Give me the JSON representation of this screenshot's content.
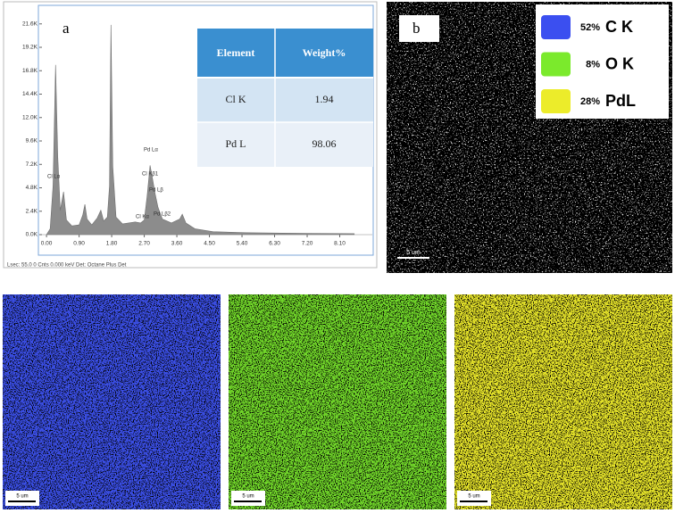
{
  "chart_data": {
    "type": "area",
    "color": "#8c8c8c",
    "x": [
      0,
      0.1,
      0.18,
      0.25,
      0.31,
      0.38,
      0.47,
      0.55,
      0.7,
      0.9,
      1.0,
      1.06,
      1.12,
      1.25,
      1.4,
      1.5,
      1.58,
      1.68,
      1.74,
      1.78,
      1.83,
      1.92,
      2.1,
      2.45,
      2.6,
      2.7,
      2.78,
      2.86,
      2.93,
      3.0,
      3.08,
      3.2,
      3.45,
      3.68,
      3.75,
      3.85,
      4.1,
      4.6,
      5.5,
      6.5,
      7.5,
      8.5
    ],
    "values": [
      0,
      600,
      5000,
      17400,
      8000,
      2500,
      4400,
      1500,
      900,
      1000,
      2000,
      3100,
      1600,
      1000,
      1700,
      2500,
      1400,
      1800,
      5000,
      21500,
      7000,
      1800,
      1100,
      1300,
      1200,
      1500,
      4000,
      7100,
      5700,
      4200,
      2800,
      1600,
      1200,
      1600,
      2100,
      1200,
      600,
      300,
      200,
      150,
      120,
      100
    ],
    "xlim": [
      -0.2,
      9.0
    ],
    "ylim": [
      0,
      23500
    ],
    "xticks": [
      {
        "value": 0,
        "label": "0.00"
      },
      {
        "value": 0.9,
        "label": "0.90"
      },
      {
        "value": 1.8,
        "label": "1.80"
      },
      {
        "value": 2.7,
        "label": "2.70"
      },
      {
        "value": 3.6,
        "label": "3.60"
      },
      {
        "value": 4.5,
        "label": "4.50"
      },
      {
        "value": 5.4,
        "label": "5.40"
      },
      {
        "value": 6.3,
        "label": "6.30"
      },
      {
        "value": 7.2,
        "label": "7.20"
      },
      {
        "value": 8.1,
        "label": "8.10"
      }
    ],
    "yticks": [
      {
        "value": 0,
        "label": "0.0K"
      },
      {
        "value": 2400,
        "label": "2.4K"
      },
      {
        "value": 4800,
        "label": "4.8K"
      },
      {
        "value": 7200,
        "label": "7.2K"
      },
      {
        "value": 9600,
        "label": "9.6K"
      },
      {
        "value": 12000,
        "label": "12.0K"
      },
      {
        "value": 14400,
        "label": "14.4K"
      },
      {
        "value": 16800,
        "label": "16.8K"
      },
      {
        "value": 19200,
        "label": "19.2K"
      },
      {
        "value": 21600,
        "label": "21.6K"
      }
    ],
    "annotations": [
      "Cl Lα",
      "Pd Lα",
      "Cl Kβ1",
      "Pd Lβ",
      "Cl Kα",
      "Pd Lβ2"
    ],
    "footer": "Lsec: 55.0 0 Cnts 0.000 keV Det: Octane Plus Det"
  },
  "panel_a": {
    "label": "a",
    "table": {
      "header": [
        "Element",
        "Weight%"
      ],
      "rows": [
        [
          "Cl K",
          "1.94"
        ],
        [
          "Pd L",
          "98.06"
        ]
      ]
    }
  },
  "panel_b": {
    "label": "b",
    "scale_bar": "5 um",
    "legend": [
      {
        "percent": "52%",
        "element": "C K",
        "color": "#3b4ff0"
      },
      {
        "percent": "8%",
        "element": "O K",
        "color": "#7bea2c"
      },
      {
        "percent": "28%",
        "element": "PdL",
        "color": "#ecec2a"
      }
    ]
  },
  "maps": [
    {
      "color": "#3b4fe6",
      "scale_bar": "5 um"
    },
    {
      "color": "#72d82a",
      "scale_bar": "5 um"
    },
    {
      "color": "#e6e42a",
      "scale_bar": "5 um"
    }
  ]
}
